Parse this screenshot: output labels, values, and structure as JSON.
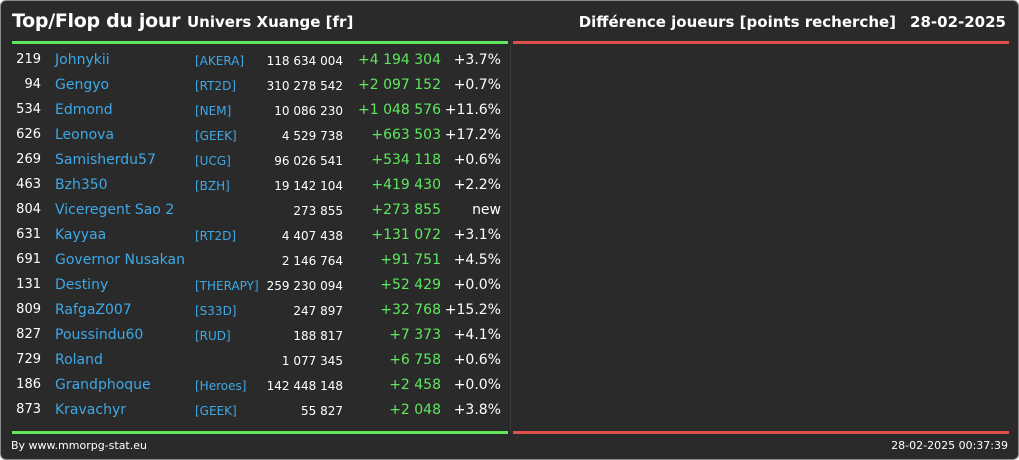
{
  "header": {
    "title": "Top/Flop du jour",
    "universe": "Univers Xuange [fr]",
    "metric": "Différence joueurs [points recherche]",
    "date": "28-02-2025"
  },
  "colors": {
    "green": "#5ee85e",
    "red": "#e0504a",
    "link": "#3da9e6",
    "background": "#2a2a2a"
  },
  "top_rows": [
    {
      "rank": "219",
      "name": "Johnykii",
      "tag": "[AKERA]",
      "points": "118 634 004",
      "diff": "+4 194 304",
      "pct": "+3.7%"
    },
    {
      "rank": "94",
      "name": "Gengyo",
      "tag": "[RT2D]",
      "points": "310 278 542",
      "diff": "+2 097 152",
      "pct": "+0.7%"
    },
    {
      "rank": "534",
      "name": "Edmond",
      "tag": "[NEM]",
      "points": "10 086 230",
      "diff": "+1 048 576",
      "pct": "+11.6%"
    },
    {
      "rank": "626",
      "name": "Leonova",
      "tag": "[GEEK]",
      "points": "4 529 738",
      "diff": "+663 503",
      "pct": "+17.2%"
    },
    {
      "rank": "269",
      "name": "Samisherdu57",
      "tag": "[UCG]",
      "points": "96 026 541",
      "diff": "+534 118",
      "pct": "+0.6%"
    },
    {
      "rank": "463",
      "name": "Bzh350",
      "tag": "[BZH]",
      "points": "19 142 104",
      "diff": "+419 430",
      "pct": "+2.2%"
    },
    {
      "rank": "804",
      "name": "Viceregent Sao 2",
      "tag": "",
      "points": "273 855",
      "diff": "+273 855",
      "pct": "new"
    },
    {
      "rank": "631",
      "name": "Kayyaa",
      "tag": "[RT2D]",
      "points": "4 407 438",
      "diff": "+131 072",
      "pct": "+3.1%"
    },
    {
      "rank": "691",
      "name": "Governor Nusakan",
      "tag": "",
      "points": "2 146 764",
      "diff": "+91 751",
      "pct": "+4.5%"
    },
    {
      "rank": "131",
      "name": "Destiny",
      "tag": "[THERAPY]",
      "points": "259 230 094",
      "diff": "+52 429",
      "pct": "+0.0%"
    },
    {
      "rank": "809",
      "name": "RafgaZ007",
      "tag": "[S33D]",
      "points": "247 897",
      "diff": "+32 768",
      "pct": "+15.2%"
    },
    {
      "rank": "827",
      "name": "Poussindu60",
      "tag": "[RUD]",
      "points": "188 817",
      "diff": "+7 373",
      "pct": "+4.1%"
    },
    {
      "rank": "729",
      "name": "Roland",
      "tag": "",
      "points": "1 077 345",
      "diff": "+6 758",
      "pct": "+0.6%"
    },
    {
      "rank": "186",
      "name": "Grandphoque",
      "tag": "[Heroes]",
      "points": "142 448 148",
      "diff": "+2 458",
      "pct": "+0.0%"
    },
    {
      "rank": "873",
      "name": "Kravachyr",
      "tag": "[GEEK]",
      "points": "55 827",
      "diff": "+2 048",
      "pct": "+3.8%"
    }
  ],
  "footer": {
    "credit": "By www.mmorpg-stat.eu",
    "timestamp": "28-02-2025 00:37:39"
  }
}
